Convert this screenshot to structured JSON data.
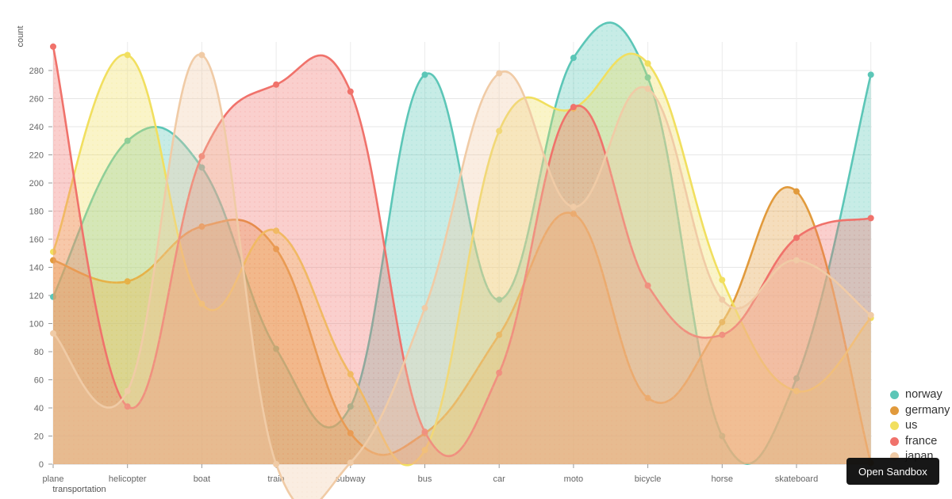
{
  "chart_data": {
    "type": "line",
    "smooth": true,
    "area": true,
    "grid": true,
    "legend_position": "right-bottom",
    "xlabel": "transportation",
    "ylabel": "count",
    "ylim": [
      0,
      300
    ],
    "ytick_step": 20,
    "yticks": [
      0,
      20,
      40,
      60,
      80,
      100,
      120,
      140,
      160,
      180,
      200,
      220,
      240,
      260,
      280
    ],
    "categories": [
      "plane",
      "helicopter",
      "boat",
      "train",
      "subway",
      "bus",
      "car",
      "moto",
      "bicycle",
      "horse",
      "skateboard",
      ""
    ],
    "series": [
      {
        "name": "norway",
        "color": "#5CC6B7",
        "values": [
          119,
          230,
          211,
          82,
          41,
          277,
          117,
          289,
          275,
          20,
          61,
          277
        ]
      },
      {
        "name": "germany",
        "color": "#E19A3C",
        "values": [
          145,
          130,
          169,
          153,
          22,
          22,
          92,
          178,
          47,
          101,
          194,
          1
        ]
      },
      {
        "name": "us",
        "color": "#F1DF5F",
        "values": [
          151,
          291,
          114,
          166,
          64,
          10,
          237,
          253,
          285,
          131,
          52,
          104
        ]
      },
      {
        "name": "france",
        "color": "#F0726B",
        "values": [
          297,
          41,
          219,
          270,
          265,
          23,
          65,
          254,
          127,
          92,
          161,
          175
        ]
      },
      {
        "name": "japan",
        "color": "#F0CBA6",
        "values": [
          93,
          52,
          291,
          0,
          1,
          111,
          278,
          183,
          267,
          117,
          145,
          106
        ]
      }
    ],
    "colors": {
      "grid_line": "#e7e7e7",
      "vertical_grid_line": "#ebebeb",
      "axis_line": "#cfcfcf",
      "tick": "#999999",
      "axis_text": "#666666",
      "legend_text": "#333333"
    }
  },
  "legend": {
    "items": [
      "norway",
      "germany",
      "us",
      "france",
      "japan"
    ]
  },
  "overlay": {
    "open_sandbox_label": "Open Sandbox"
  }
}
